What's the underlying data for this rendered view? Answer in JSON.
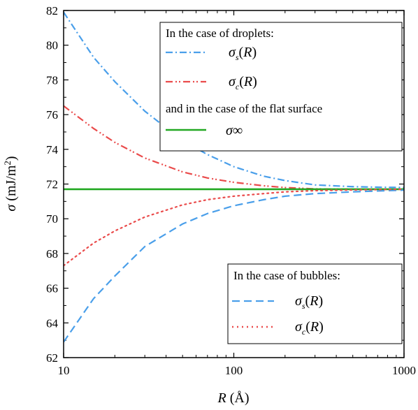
{
  "chart_data": {
    "type": "line",
    "x_scale": "log",
    "xlim": [
      10,
      1000
    ],
    "ylim": [
      62,
      82
    ],
    "xlabel": "R (Å)",
    "ylabel": "σ (mJ/m²)",
    "x_ticks": [
      10,
      100,
      1000
    ],
    "y_ticks": [
      62,
      64,
      66,
      68,
      70,
      72,
      74,
      76,
      78,
      80,
      82
    ],
    "x": [
      10,
      15,
      20,
      30,
      50,
      70,
      100,
      150,
      200,
      300,
      500,
      700,
      1000
    ],
    "series": [
      {
        "group": "droplets",
        "name": "σs(R)",
        "color": "#4a9fea",
        "dash": "dashdot",
        "values": [
          81.9,
          79.3,
          77.9,
          76.2,
          74.5,
          73.7,
          73.0,
          72.45,
          72.2,
          71.95,
          71.85,
          71.82,
          71.8
        ]
      },
      {
        "group": "droplets",
        "name": "σc(R)",
        "color": "#ea4b4b",
        "dash": "dashdotdot",
        "values": [
          76.5,
          75.2,
          74.4,
          73.5,
          72.7,
          72.35,
          72.1,
          71.9,
          71.8,
          71.72,
          71.7,
          71.7,
          71.7
        ]
      },
      {
        "group": "flat",
        "name": "σ∞",
        "color": "#22a822",
        "dash": "solid",
        "values": [
          71.7,
          71.7,
          71.7,
          71.7,
          71.7,
          71.7,
          71.7,
          71.7,
          71.7,
          71.7,
          71.7,
          71.7,
          71.7
        ]
      },
      {
        "group": "bubbles",
        "name": "σs(R)",
        "color": "#4a9fea",
        "dash": "dash",
        "values": [
          62.9,
          65.4,
          66.7,
          68.4,
          69.7,
          70.3,
          70.75,
          71.1,
          71.3,
          71.45,
          71.55,
          71.6,
          71.65
        ]
      },
      {
        "group": "bubbles",
        "name": "σc(R)",
        "color": "#ea4b4b",
        "dash": "dot",
        "values": [
          67.3,
          68.6,
          69.3,
          70.1,
          70.8,
          71.1,
          71.3,
          71.45,
          71.55,
          71.62,
          71.66,
          71.68,
          71.7
        ]
      }
    ],
    "legend_top": {
      "heading_droplets": "In the case of droplets:",
      "heading_flat": "and in the case of the flat surface",
      "position": "top-right"
    },
    "legend_bottom": {
      "heading_bubbles": "In the case of bubbles:",
      "position": "bottom-right"
    }
  }
}
